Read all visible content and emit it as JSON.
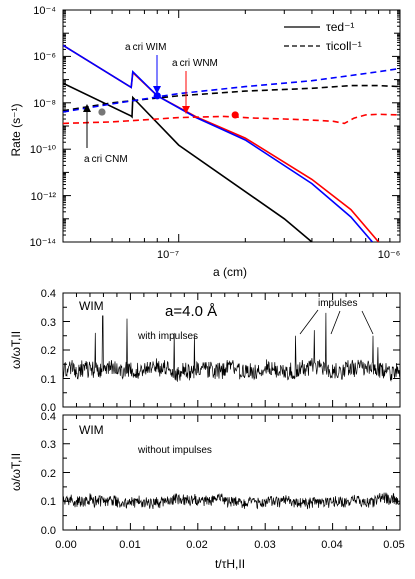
{
  "chart_data": [
    {
      "type": "line",
      "scale": {
        "x": "log",
        "y": "log"
      },
      "xlabel": "a (cm)",
      "ylabel": "Rate (s⁻¹)",
      "xlim": [
        3e-08,
        1e-06
      ],
      "ylim": [
        1e-14,
        0.0001
      ],
      "x_ticks": [
        "10⁻⁷",
        "10⁻⁶"
      ],
      "y_ticks": [
        "10⁻⁴",
        "10⁻⁶",
        "10⁻⁸",
        "10⁻¹⁰",
        "10⁻¹²",
        "10⁻¹⁴"
      ],
      "legend": {
        "placement": "top-right",
        "items": [
          {
            "label": "τed⁻¹",
            "style": "solid"
          },
          {
            "label": "τicoll⁻¹",
            "style": "dashed"
          }
        ]
      },
      "series": [
        {
          "color": "#000000",
          "style": "solid",
          "points": [
            [
              3e-08,
              7e-08
            ],
            [
              6.1e-08,
              2.7e-09
            ],
            [
              6.15e-08,
              2.5e-09
            ],
            [
              6.2e-08,
              1.7e-08
            ],
            [
              1e-07,
              1.5e-10
            ],
            [
              3e-07,
              1e-13
            ],
            [
              4e-07,
              1e-14
            ]
          ]
        },
        {
          "color": "#ff0000",
          "style": "solid",
          "points": [
            [
              3e-08,
              3e-06
            ],
            [
              6.1e-08,
              4.6e-08
            ],
            [
              6.2e-08,
              2e-07
            ],
            [
              8e-08,
              2e-08
            ],
            [
              1.2e-07,
              2.5e-09
            ],
            [
              2e-07,
              3e-10
            ],
            [
              4e-07,
              5e-12
            ],
            [
              6e-07,
              2.5e-13
            ],
            [
              8e-07,
              1e-14
            ]
          ]
        },
        {
          "color": "#0000ff",
          "style": "solid",
          "points": [
            [
              3e-08,
              3e-06
            ],
            [
              6.1e-08,
              4.6e-08
            ],
            [
              6.2e-08,
              2.2e-07
            ],
            [
              8e-08,
              2e-08
            ],
            [
              1.2e-07,
              2.3e-09
            ],
            [
              2e-07,
              2.5e-10
            ],
            [
              4e-07,
              3.3e-12
            ],
            [
              6e-07,
              1.2e-13
            ],
            [
              7.5e-07,
              1e-14
            ]
          ]
        },
        {
          "color": "#000000",
          "style": "dashed",
          "points": [
            [
              3e-08,
              4.5e-09
            ],
            [
              5e-08,
              1e-08
            ],
            [
              1e-07,
              2e-08
            ],
            [
              2e-07,
              3.2e-08
            ],
            [
              4e-07,
              4.2e-08
            ],
            [
              6e-07,
              5.5e-08
            ],
            [
              8e-07,
              5.5e-08
            ],
            [
              1e-06,
              5e-08
            ]
          ]
        },
        {
          "color": "#0000ff",
          "style": "dashed",
          "points": [
            [
              3e-08,
              4e-09
            ],
            [
              5e-08,
              9e-09
            ],
            [
              1e-07,
              2.5e-08
            ],
            [
              2e-07,
              5e-08
            ],
            [
              4e-07,
              9e-08
            ],
            [
              6e-07,
              1.5e-07
            ],
            [
              8e-07,
              2.2e-07
            ],
            [
              1e-06,
              3e-07
            ]
          ]
        },
        {
          "color": "#ff0000",
          "style": "dashed",
          "points": [
            [
              3e-08,
              1.3e-09
            ],
            [
              5e-08,
              1.5e-09
            ],
            [
              1e-07,
              2.3e-09
            ],
            [
              1.6e-07,
              2.6e-09
            ],
            [
              2.2e-07,
              2.2e-09
            ],
            [
              3e-07,
              2e-09
            ],
            [
              4e-07,
              1.8e-09
            ],
            [
              5e-07,
              1.6e-09
            ],
            [
              5.6e-07,
              1.3e-09
            ],
            [
              6.2e-07,
              2.2e-09
            ],
            [
              7e-07,
              3e-09
            ],
            [
              8e-07,
              3.2e-09
            ],
            [
              1e-06,
              3e-09
            ]
          ]
        }
      ],
      "markers": [
        {
          "x": 4.5e-08,
          "y": 4e-09,
          "color": "#777777"
        },
        {
          "x": 8e-08,
          "y": 2e-08,
          "color": "#0000ff"
        },
        {
          "x": 1.8e-07,
          "y": 3e-09,
          "color": "#ff0000"
        }
      ],
      "annotations": [
        {
          "text": "a cri WIM",
          "color": "#0000ff"
        },
        {
          "text": "a cri WNM",
          "color": "#ff0000"
        },
        {
          "text": "a cri CNM",
          "color": "#000000"
        }
      ]
    },
    {
      "type": "line",
      "panel_label": "WIM",
      "title": "a=4.0 Å",
      "ylabel": "ω/ωT,II",
      "xlim": [
        0,
        0.05
      ],
      "ylim": [
        0,
        0.4
      ],
      "y_ticks": [
        "0.0",
        "0.1",
        "0.2",
        "0.3",
        "0.4"
      ],
      "annotations": [
        "with impulses",
        "impulses"
      ],
      "signal": {
        "mean": 0.13,
        "amplitude": 0.045,
        "impulses": [
          {
            "t": 0.0048,
            "value": 0.26
          },
          {
            "t": 0.0059,
            "value": 0.32
          },
          {
            "t": 0.0095,
            "value": 0.31
          },
          {
            "t": 0.0165,
            "value": 0.26
          },
          {
            "t": 0.0195,
            "value": 0.25
          },
          {
            "t": 0.0345,
            "value": 0.25
          },
          {
            "t": 0.0373,
            "value": 0.27
          },
          {
            "t": 0.039,
            "value": 0.33
          },
          {
            "t": 0.046,
            "value": 0.25
          },
          {
            "t": 0.0467,
            "value": 0.21
          }
        ]
      }
    },
    {
      "type": "line",
      "panel_label": "WIM",
      "ylabel": "ω/ωT,II",
      "xlabel": "t/τH,II",
      "xlim": [
        0,
        0.05
      ],
      "ylim": [
        0,
        0.4
      ],
      "y_ticks": [
        "0.0",
        "0.1",
        "0.2",
        "0.3",
        "0.4"
      ],
      "x_ticks": [
        "0.00",
        "0.01",
        "0.02",
        "0.03",
        "0.04",
        "0.05"
      ],
      "annotations": [
        "without impulses"
      ],
      "signal": {
        "mean": 0.1,
        "amplitude": 0.03,
        "impulses": []
      }
    }
  ]
}
